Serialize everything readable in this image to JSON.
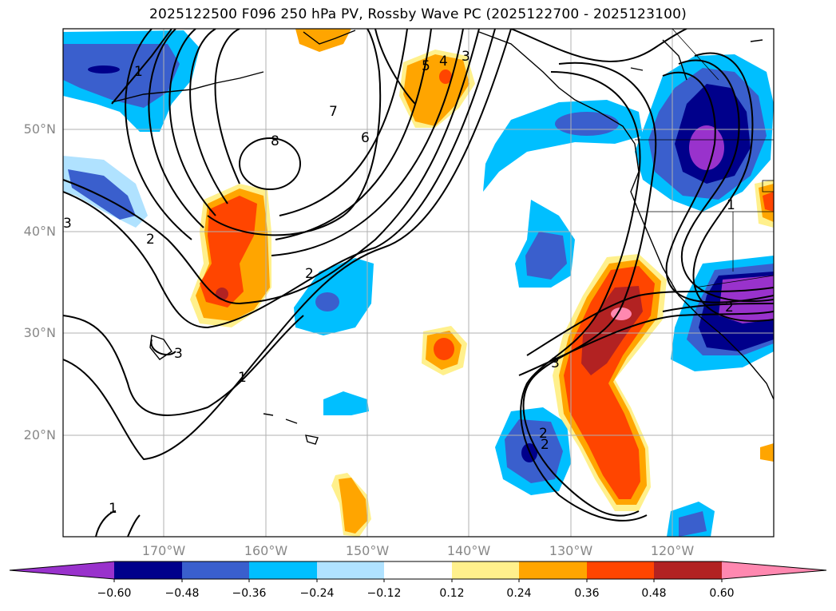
{
  "title": "2025122500 F096 250 hPa PV, Rossby Wave PC (2025122700 - 2025123100)",
  "map": {
    "lat_labels": [
      "50°N",
      "40°N",
      "30°N",
      "20°N"
    ],
    "lon_labels": [
      "170°W",
      "160°W",
      "150°W",
      "140°W",
      "130°W",
      "120°W"
    ],
    "contour_labels": [
      "1",
      "8",
      "7",
      "6",
      "5",
      "4",
      "3",
      "2",
      "2",
      "3",
      "1",
      "3",
      "2",
      "2",
      "1",
      "3",
      "1",
      "2"
    ]
  },
  "colorbar": {
    "tick_labels": [
      "−0.60",
      "−0.48",
      "−0.36",
      "−0.24",
      "−0.12",
      "0.12",
      "0.24",
      "0.36",
      "0.48",
      "0.60"
    ],
    "colors": [
      "#9932cc",
      "#00008b",
      "#3a5fcd",
      "#00bfff",
      "#b0e2ff",
      "#ffffff",
      "#fff08c",
      "#ffa500",
      "#ff4500",
      "#b22222",
      "#ff88b0"
    ]
  }
}
